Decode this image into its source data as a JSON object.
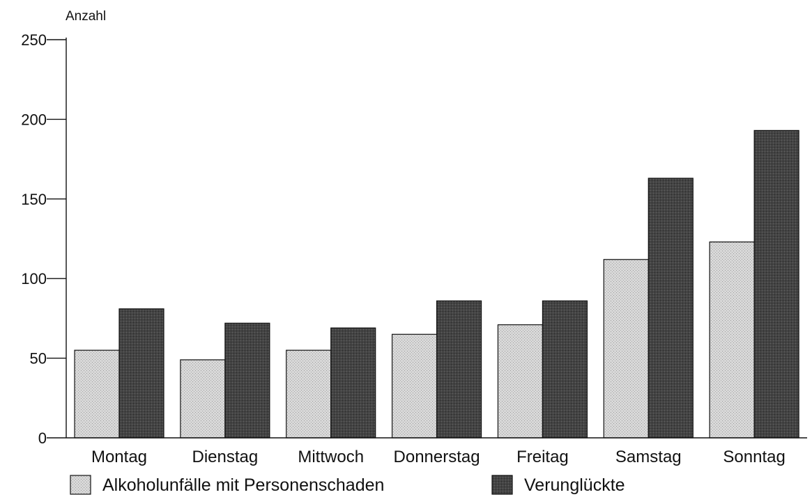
{
  "chart_data": {
    "type": "bar",
    "title": "",
    "xlabel": "",
    "ylabel": "Anzahl",
    "ylim": [
      0,
      250
    ],
    "yticks": [
      0,
      50,
      100,
      150,
      200,
      250
    ],
    "grid": false,
    "legend_position": "bottom-left",
    "categories": [
      "Montag",
      "Dienstag",
      "Mittwoch",
      "Donnerstag",
      "Freitag",
      "Samstag",
      "Sonntag"
    ],
    "series": [
      {
        "name": "Alkoholunfälle mit Personenschaden",
        "color": "#cfcfcf",
        "values": [
          55,
          49,
          55,
          65,
          71,
          112,
          123
        ]
      },
      {
        "name": "Verunglückte",
        "color": "#3c3c3c",
        "values": [
          81,
          72,
          69,
          86,
          86,
          163,
          193
        ]
      }
    ]
  }
}
